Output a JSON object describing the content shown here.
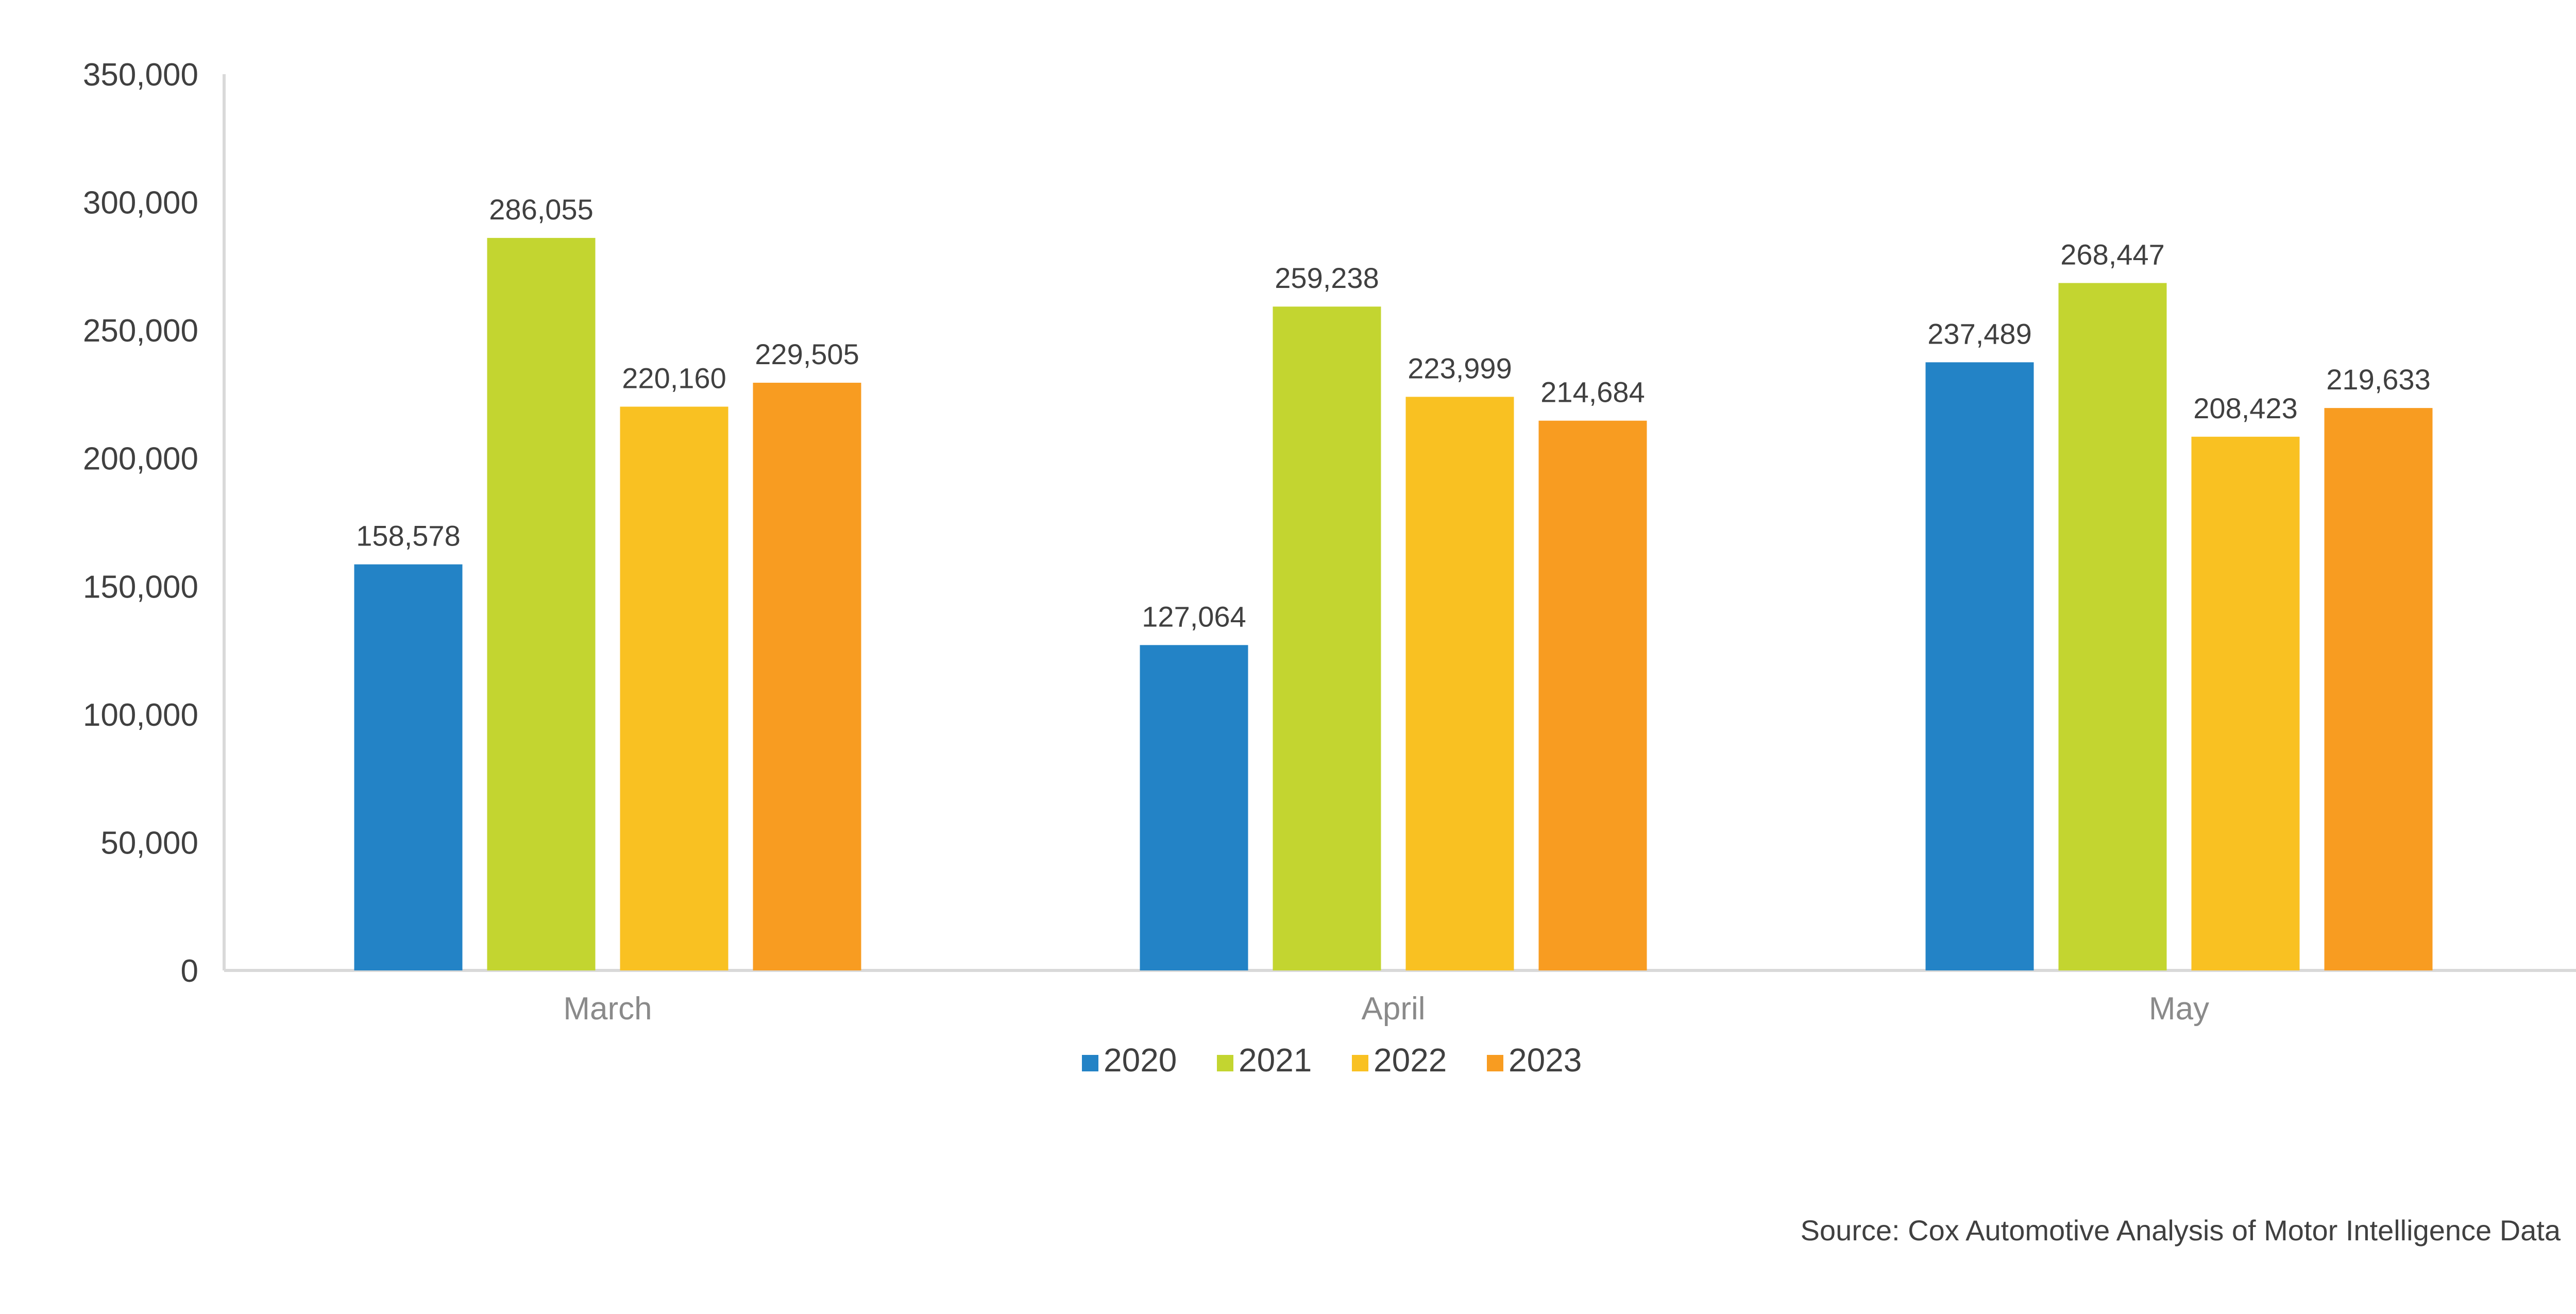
{
  "chart_data": {
    "type": "bar",
    "title": "",
    "xlabel": "",
    "ylabel": "",
    "categories": [
      "March",
      "April",
      "May"
    ],
    "series": [
      {
        "name": "2020",
        "color": "#2383C6",
        "values": [
          158578,
          127064,
          237489
        ],
        "labels": [
          "158,578",
          "127,064",
          "237,489"
        ]
      },
      {
        "name": "2021",
        "color": "#C3D530",
        "values": [
          286055,
          259238,
          268447
        ],
        "labels": [
          "286,055",
          "259,238",
          "268,447"
        ]
      },
      {
        "name": "2022",
        "color": "#F9C122",
        "values": [
          220160,
          223999,
          208423
        ],
        "labels": [
          "220,160",
          "223,999",
          "208,423"
        ]
      },
      {
        "name": "2023",
        "color": "#F89C21",
        "values": [
          229505,
          214684,
          219633
        ],
        "labels": [
          "229,505",
          "214,684",
          "219,633"
        ]
      }
    ],
    "ylim": [
      0,
      350000
    ],
    "yticks": [
      0,
      50000,
      100000,
      150000,
      200000,
      250000,
      300000,
      350000
    ],
    "ytick_labels": [
      "0",
      "50,000",
      "100,000",
      "150,000",
      "200,000",
      "250,000",
      "300,000",
      "350,000"
    ],
    "grid": false,
    "legend_position": "bottom",
    "axis_color": "#D9D9D9"
  },
  "source": "Source: Cox Automotive Analysis of Motor Intelligence Data"
}
